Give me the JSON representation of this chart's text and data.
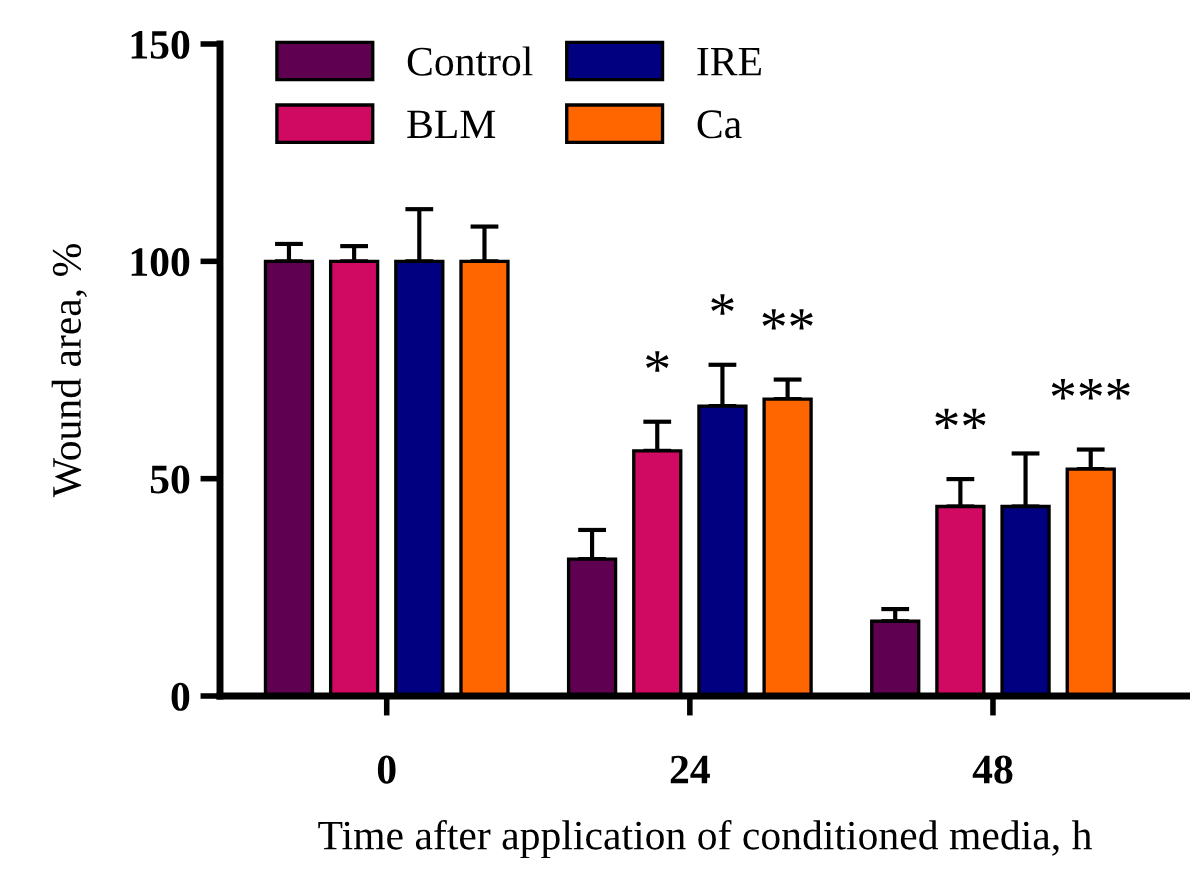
{
  "chart_data": {
    "type": "bar",
    "xlabel": "Time after application of conditioned media, h",
    "ylabel": "Wound area, %",
    "categories": [
      "0",
      "24",
      "48"
    ],
    "series": [
      {
        "name": "Control",
        "color": "#5f0050",
        "values": [
          100,
          31.5,
          17.2
        ],
        "errors": [
          4,
          6.7,
          2.8
        ],
        "value_labels": [
          null,
          null,
          null
        ]
      },
      {
        "name": "BLM",
        "color": "#d00a63",
        "values": [
          100,
          56.4,
          43.6
        ],
        "errors": [
          3.5,
          6.7,
          6.3
        ],
        "value_labels": [
          null,
          "*",
          "**"
        ]
      },
      {
        "name": "IRE",
        "color": "#000080",
        "values": [
          100,
          66.7,
          43.6
        ],
        "errors": [
          12,
          9.5,
          12.2
        ],
        "value_labels": [
          null,
          "*",
          null
        ]
      },
      {
        "name": "Ca",
        "color": "#ff6600",
        "values": [
          100,
          68.3,
          52.2
        ],
        "errors": [
          8,
          4.5,
          4.5
        ],
        "value_labels": [
          null,
          "**",
          "***"
        ]
      }
    ],
    "ylim": [
      0,
      150
    ],
    "yticks": [
      0,
      50,
      100,
      150
    ],
    "grid": false,
    "legend": "top left"
  }
}
